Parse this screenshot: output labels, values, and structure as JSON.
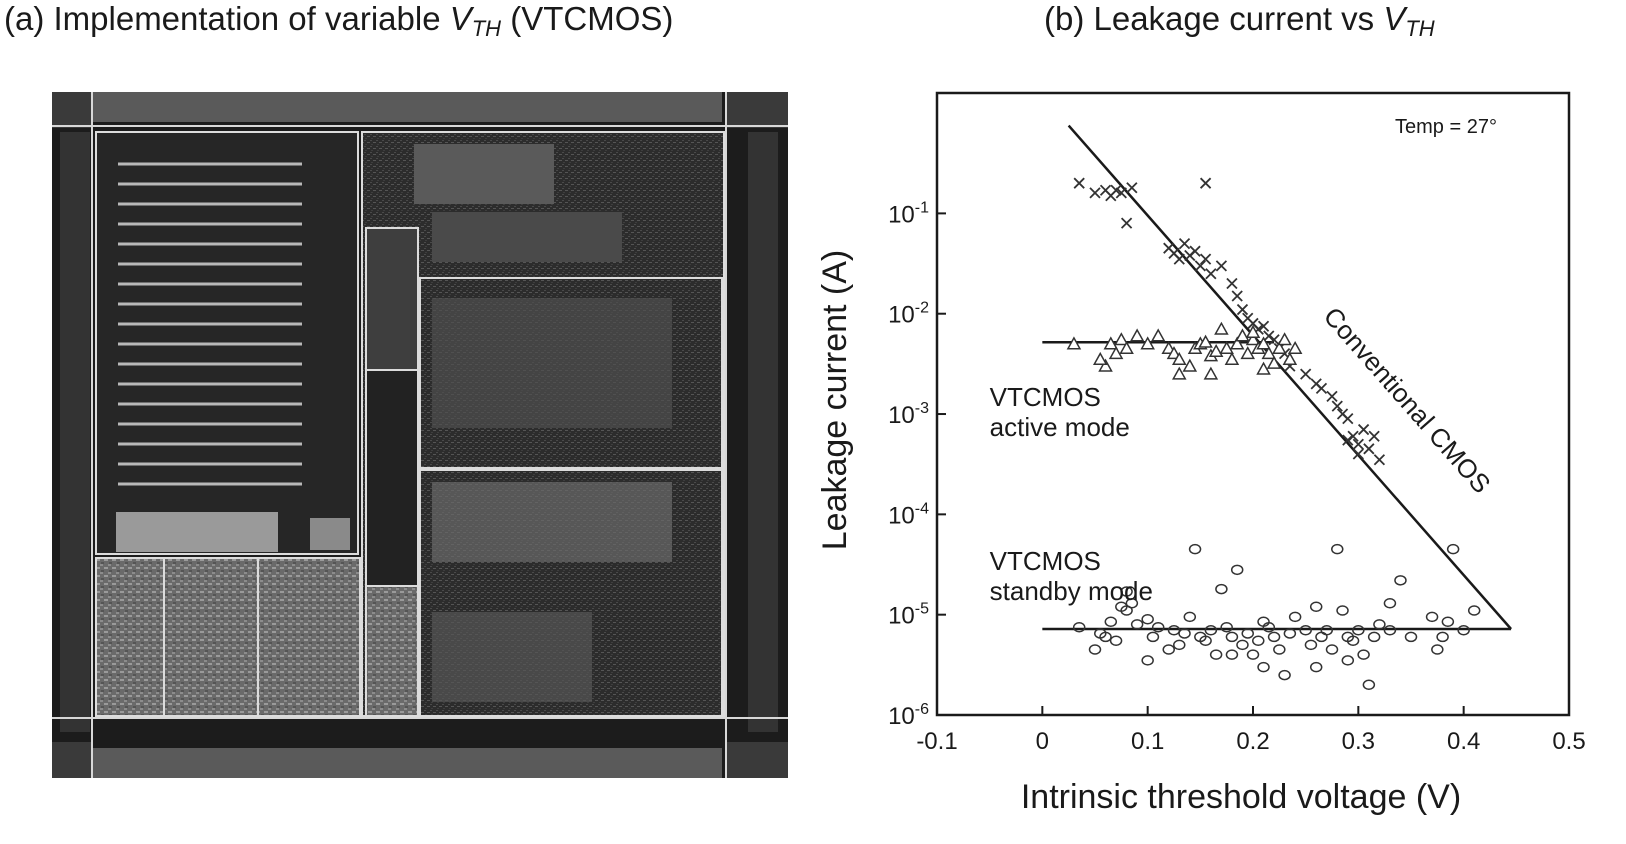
{
  "panel_a": {
    "title_prefix": "(a) Implementation of variable ",
    "title_symbol": "V",
    "title_subscript": "TH",
    "title_suffix": " (VTCMOS)"
  },
  "panel_b": {
    "title_prefix": "(b) Leakage current vs ",
    "title_symbol": "V",
    "title_subscript": "TH"
  },
  "chart_data": {
    "type": "scatter",
    "xlabel": "Intrinsic threshold voltage (V)",
    "ylabel": "Leakage current (A)",
    "xlim": [
      -0.1,
      0.5
    ],
    "ylim": [
      1e-06,
      1
    ],
    "yscale": "log",
    "x_tick_labels": [
      "-0.1",
      "0",
      "0.1",
      "0.2",
      "0.3",
      "0.4",
      "0.5"
    ],
    "x_ticks": [
      -0.1,
      0,
      0.1,
      0.2,
      0.3,
      0.4,
      0.5
    ],
    "y_tick_labels": [
      {
        "base": "10",
        "exp": "-1",
        "value": 0.1
      },
      {
        "base": "10",
        "exp": "-2",
        "value": 0.01
      },
      {
        "base": "10",
        "exp": "-3",
        "value": 0.001
      },
      {
        "base": "10",
        "exp": "-4",
        "value": 0.0001
      },
      {
        "base": "10",
        "exp": "-5",
        "value": 1e-05
      },
      {
        "base": "10",
        "exp": "-6",
        "value": 1e-06
      }
    ],
    "grid": false,
    "annotation_temp": "Temp = 27°",
    "annotations": [
      {
        "lines": [
          "Conventional CMOS"
        ],
        "x": 0.34,
        "y": 0.0012,
        "rotate": true
      },
      {
        "lines": [
          "VTCMOS",
          "active mode"
        ],
        "x": -0.05,
        "y": 0.0012,
        "rotate": false
      },
      {
        "lines": [
          "VTCMOS",
          "standby mode"
        ],
        "x": -0.05,
        "y": 2.8e-05,
        "rotate": false
      }
    ],
    "lines": [
      {
        "name": "Conventional CMOS",
        "x": [
          0.025,
          0.445
        ],
        "y": [
          0.75,
          7.2e-06
        ]
      },
      {
        "name": "VTCMOS active mode",
        "x": [
          0.0,
          0.22
        ],
        "y": [
          0.0052,
          0.0052
        ]
      },
      {
        "name": "VTCMOS standby mode",
        "x": [
          0.0,
          0.445
        ],
        "y": [
          7.2e-06,
          7.2e-06
        ]
      }
    ],
    "series": [
      {
        "marker": "x",
        "points": [
          [
            0.035,
            0.2
          ],
          [
            0.05,
            0.16
          ],
          [
            0.06,
            0.17
          ],
          [
            0.065,
            0.15
          ],
          [
            0.07,
            0.17
          ],
          [
            0.075,
            0.16
          ],
          [
            0.08,
            0.08
          ],
          [
            0.085,
            0.18
          ],
          [
            0.155,
            0.2
          ],
          [
            0.12,
            0.045
          ],
          [
            0.125,
            0.04
          ],
          [
            0.13,
            0.035
          ],
          [
            0.135,
            0.05
          ],
          [
            0.14,
            0.038
          ],
          [
            0.145,
            0.042
          ],
          [
            0.15,
            0.03
          ],
          [
            0.155,
            0.035
          ],
          [
            0.16,
            0.025
          ],
          [
            0.17,
            0.03
          ],
          [
            0.18,
            0.02
          ],
          [
            0.185,
            0.015
          ],
          [
            0.19,
            0.011
          ],
          [
            0.195,
            0.009
          ],
          [
            0.2,
            0.008
          ],
          [
            0.205,
            0.007
          ],
          [
            0.21,
            0.0075
          ],
          [
            0.215,
            0.006
          ],
          [
            0.22,
            0.0055
          ],
          [
            0.225,
            0.0045
          ],
          [
            0.23,
            0.004
          ],
          [
            0.235,
            0.003
          ],
          [
            0.25,
            0.0025
          ],
          [
            0.26,
            0.002
          ],
          [
            0.265,
            0.0018
          ],
          [
            0.275,
            0.0015
          ],
          [
            0.28,
            0.0012
          ],
          [
            0.285,
            0.001
          ],
          [
            0.29,
            0.0009
          ],
          [
            0.295,
            0.0006
          ],
          [
            0.3,
            0.0005
          ],
          [
            0.305,
            0.0007
          ],
          [
            0.31,
            0.00045
          ],
          [
            0.315,
            0.0006
          ],
          [
            0.32,
            0.00035
          ],
          [
            0.3,
            0.0004
          ],
          [
            0.29,
            0.00055
          ]
        ]
      },
      {
        "marker": "triangle",
        "points": [
          [
            0.03,
            0.005
          ],
          [
            0.065,
            0.005
          ],
          [
            0.07,
            0.004
          ],
          [
            0.075,
            0.0055
          ],
          [
            0.08,
            0.0045
          ],
          [
            0.06,
            0.003
          ],
          [
            0.055,
            0.0035
          ],
          [
            0.09,
            0.006
          ],
          [
            0.1,
            0.005
          ],
          [
            0.11,
            0.006
          ],
          [
            0.12,
            0.0045
          ],
          [
            0.125,
            0.004
          ],
          [
            0.13,
            0.0035
          ],
          [
            0.14,
            0.003
          ],
          [
            0.145,
            0.0045
          ],
          [
            0.15,
            0.005
          ],
          [
            0.155,
            0.0052
          ],
          [
            0.16,
            0.0038
          ],
          [
            0.165,
            0.0042
          ],
          [
            0.17,
            0.007
          ],
          [
            0.175,
            0.0045
          ],
          [
            0.18,
            0.0035
          ],
          [
            0.185,
            0.005
          ],
          [
            0.19,
            0.006
          ],
          [
            0.195,
            0.004
          ],
          [
            0.2,
            0.0055
          ],
          [
            0.205,
            0.0045
          ],
          [
            0.21,
            0.005
          ],
          [
            0.215,
            0.004
          ],
          [
            0.22,
            0.0032
          ],
          [
            0.225,
            0.0045
          ],
          [
            0.23,
            0.0055
          ],
          [
            0.235,
            0.0035
          ],
          [
            0.21,
            0.0028
          ],
          [
            0.2,
            0.0065
          ],
          [
            0.16,
            0.0025
          ],
          [
            0.13,
            0.0025
          ],
          [
            0.24,
            0.0045
          ]
        ]
      },
      {
        "marker": "circle",
        "points": [
          [
            0.035,
            7.5e-06
          ],
          [
            0.05,
            4.5e-06
          ],
          [
            0.055,
            6.5e-06
          ],
          [
            0.06,
            6e-06
          ],
          [
            0.065,
            8.5e-06
          ],
          [
            0.07,
            5.5e-06
          ],
          [
            0.075,
            1.2e-05
          ],
          [
            0.08,
            1.7e-05
          ],
          [
            0.085,
            1.3e-05
          ],
          [
            0.09,
            8e-06
          ],
          [
            0.1,
            9e-06
          ],
          [
            0.105,
            6e-06
          ],
          [
            0.11,
            7.5e-06
          ],
          [
            0.12,
            4.5e-06
          ],
          [
            0.125,
            7e-06
          ],
          [
            0.13,
            5e-06
          ],
          [
            0.135,
            6.5e-06
          ],
          [
            0.14,
            9.5e-06
          ],
          [
            0.145,
            4.5e-05
          ],
          [
            0.15,
            6e-06
          ],
          [
            0.155,
            5.5e-06
          ],
          [
            0.16,
            7e-06
          ],
          [
            0.165,
            4e-06
          ],
          [
            0.17,
            1.8e-05
          ],
          [
            0.175,
            7.5e-06
          ],
          [
            0.18,
            6e-06
          ],
          [
            0.185,
            2.8e-05
          ],
          [
            0.19,
            5e-06
          ],
          [
            0.195,
            6.5e-06
          ],
          [
            0.2,
            4e-06
          ],
          [
            0.205,
            5.5e-06
          ],
          [
            0.21,
            3e-06
          ],
          [
            0.215,
            7.5e-06
          ],
          [
            0.22,
            6e-06
          ],
          [
            0.225,
            4.5e-06
          ],
          [
            0.23,
            2.5e-06
          ],
          [
            0.235,
            6.5e-06
          ],
          [
            0.24,
            9.5e-06
          ],
          [
            0.25,
            7e-06
          ],
          [
            0.255,
            5e-06
          ],
          [
            0.26,
            1.2e-05
          ],
          [
            0.265,
            6e-06
          ],
          [
            0.27,
            7e-06
          ],
          [
            0.275,
            4.5e-06
          ],
          [
            0.28,
            4.5e-05
          ],
          [
            0.285,
            1.1e-05
          ],
          [
            0.29,
            6e-06
          ],
          [
            0.295,
            5.5e-06
          ],
          [
            0.3,
            7e-06
          ],
          [
            0.305,
            4e-06
          ],
          [
            0.31,
            2e-06
          ],
          [
            0.315,
            6e-06
          ],
          [
            0.32,
            8e-06
          ],
          [
            0.33,
            7e-06
          ],
          [
            0.34,
            2.2e-05
          ],
          [
            0.35,
            6e-06
          ],
          [
            0.37,
            9.5e-06
          ],
          [
            0.375,
            4.5e-06
          ],
          [
            0.38,
            6e-06
          ],
          [
            0.385,
            8.5e-06
          ],
          [
            0.39,
            4.5e-05
          ],
          [
            0.4,
            7e-06
          ],
          [
            0.41,
            1.1e-05
          ],
          [
            0.26,
            3e-06
          ],
          [
            0.18,
            4e-06
          ],
          [
            0.1,
            3.5e-06
          ],
          [
            0.08,
            1.1e-05
          ],
          [
            0.21,
            8.5e-06
          ],
          [
            0.29,
            3.5e-06
          ],
          [
            0.33,
            1.3e-05
          ]
        ]
      }
    ]
  }
}
